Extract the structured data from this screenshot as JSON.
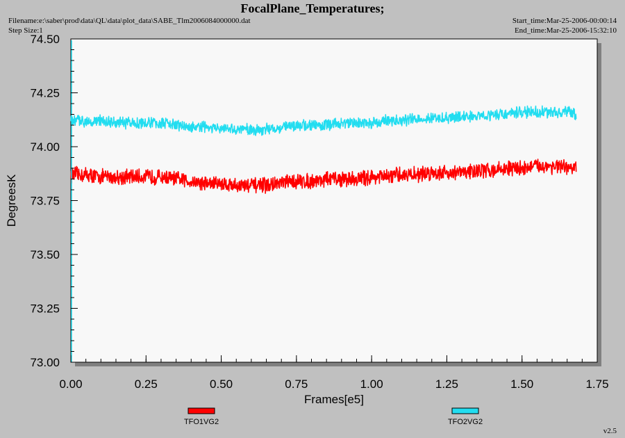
{
  "header": {
    "title": "FocalPlane_Temperatures;",
    "filename": "Filename:e:\\saber\\prod\\data\\QL\\data\\plot_data\\SABE_Tlm2006084000000.dat",
    "step_size": "Step Size:1",
    "start_time": "Start_time:Mar-25-2006-00:00:14",
    "end_time": "End_time:Mar-25-2006-15:32:10"
  },
  "footer": {
    "version": "v2.5"
  },
  "colors": {
    "background": "#c0c0c0",
    "plot_area": "#f8f8f8",
    "shadow": "#808080",
    "TFO1VG2": "#ff0000",
    "TFO2VG2": "#22ddf0"
  },
  "chart_data": {
    "type": "line",
    "title": "FocalPlane_Temperatures;",
    "xlabel": "Frames[e5]",
    "ylabel": "DegreesK",
    "xlim": [
      0.0,
      1.75
    ],
    "ylim": [
      73.0,
      74.5
    ],
    "xticks": [
      "0.00",
      "0.25",
      "0.50",
      "0.75",
      "1.00",
      "1.25",
      "1.50",
      "1.75"
    ],
    "yticks": [
      "73.00",
      "73.25",
      "73.50",
      "73.75",
      "74.00",
      "74.25",
      "74.50"
    ],
    "grid": false,
    "legend_position": "bottom",
    "series": [
      {
        "name": "TFO1VG2",
        "color": "#ff0000",
        "noise_band": 0.06,
        "x": [
          0.0,
          0.05,
          0.1,
          0.15,
          0.2,
          0.25,
          0.3,
          0.35,
          0.4,
          0.45,
          0.5,
          0.55,
          0.6,
          0.65,
          0.7,
          0.75,
          0.8,
          0.85,
          0.9,
          0.95,
          1.0,
          1.05,
          1.1,
          1.15,
          1.2,
          1.25,
          1.3,
          1.35,
          1.4,
          1.45,
          1.5,
          1.55,
          1.6,
          1.65,
          1.68
        ],
        "y": [
          73.87,
          73.87,
          73.86,
          73.86,
          73.86,
          73.86,
          73.86,
          73.85,
          73.84,
          73.83,
          73.83,
          73.82,
          73.82,
          73.82,
          73.83,
          73.84,
          73.84,
          73.85,
          73.85,
          73.85,
          73.86,
          73.86,
          73.87,
          73.87,
          73.88,
          73.88,
          73.88,
          73.89,
          73.89,
          73.9,
          73.9,
          73.91,
          73.91,
          73.9,
          73.9
        ]
      },
      {
        "name": "TFO2VG2",
        "color": "#22ddf0",
        "noise_band": 0.045,
        "x": [
          0.0,
          0.05,
          0.1,
          0.15,
          0.2,
          0.25,
          0.3,
          0.35,
          0.4,
          0.45,
          0.5,
          0.55,
          0.6,
          0.65,
          0.7,
          0.75,
          0.8,
          0.85,
          0.9,
          0.95,
          1.0,
          1.05,
          1.1,
          1.15,
          1.2,
          1.25,
          1.3,
          1.35,
          1.4,
          1.45,
          1.5,
          1.55,
          1.6,
          1.65,
          1.68
        ],
        "y": [
          74.12,
          74.12,
          74.12,
          74.11,
          74.11,
          74.11,
          74.11,
          74.1,
          74.09,
          74.09,
          74.08,
          74.08,
          74.08,
          74.08,
          74.09,
          74.1,
          74.1,
          74.1,
          74.11,
          74.11,
          74.11,
          74.12,
          74.12,
          74.13,
          74.13,
          74.13,
          74.14,
          74.14,
          74.15,
          74.15,
          74.16,
          74.16,
          74.16,
          74.16,
          74.15
        ]
      }
    ]
  }
}
